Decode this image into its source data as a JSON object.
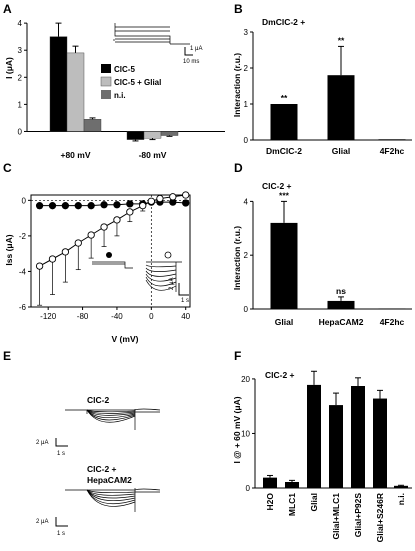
{
  "figure": {
    "panel_labels": [
      "A",
      "B",
      "C",
      "D",
      "E",
      "F"
    ]
  },
  "chart_data": [
    {
      "id": "A",
      "type": "bar",
      "ylabel": "I (μA)",
      "categories": [
        "+80 mV",
        "-80 mV"
      ],
      "series": [
        {
          "name": "ClC-5",
          "color": "#000000",
          "values": [
            3.5,
            -0.3
          ],
          "errors": [
            0.5,
            0.05
          ]
        },
        {
          "name": "ClC-5 + Glial",
          "color": "#bdbdbd",
          "values": [
            2.9,
            -0.25
          ],
          "errors": [
            0.25,
            0.05
          ]
        },
        {
          "name": "n.i.",
          "color": "#6e6e6e",
          "values": [
            0.45,
            -0.15
          ],
          "errors": [
            0.05,
            0.03
          ]
        }
      ],
      "ylim": [
        -0.5,
        4.3
      ],
      "yticks": [
        0,
        1,
        2,
        3,
        4
      ],
      "inset_scale": {
        "y": "1 μA",
        "x": "10 ms"
      }
    },
    {
      "id": "B",
      "type": "bar",
      "title": "DmClC-2 +",
      "ylabel": "Interaction (r.u.)",
      "categories": [
        "DmClC-2",
        "Glial",
        "4F2hc"
      ],
      "values": [
        1.0,
        1.8,
        0.02
      ],
      "errors": [
        0.0,
        0.8,
        0.0
      ],
      "significance": [
        "**",
        "**",
        ""
      ],
      "ylim": [
        0,
        3
      ],
      "yticks": [
        0,
        1,
        2,
        3
      ]
    },
    {
      "id": "C",
      "type": "line",
      "xlabel": "V (mV)",
      "ylabel": "Iss (μA)",
      "xlim": [
        -140,
        45
      ],
      "ylim": [
        -6,
        0.3
      ],
      "xticks": [
        -120,
        -80,
        -40,
        0,
        40
      ],
      "yticks": [
        0,
        -2,
        -4,
        -6
      ],
      "x": [
        -130,
        -115,
        -100,
        -85,
        -70,
        -55,
        -40,
        -25,
        -10,
        0,
        10,
        25,
        40
      ],
      "series": [
        {
          "name": "filled",
          "marker": "filled",
          "values": [
            -0.3,
            -0.3,
            -0.3,
            -0.3,
            -0.3,
            -0.25,
            -0.25,
            -0.2,
            -0.2,
            -0.1,
            -0.1,
            -0.1,
            -0.15
          ],
          "errors": [
            0.15,
            0.1,
            0.1,
            0.1,
            0.1,
            0.1,
            0.1,
            0.1,
            0.1,
            0.05,
            0.05,
            0.05,
            0.1
          ]
        },
        {
          "name": "open",
          "marker": "open",
          "values": [
            -3.7,
            -3.3,
            -2.9,
            -2.4,
            -1.95,
            -1.5,
            -1.1,
            -0.65,
            -0.3,
            -0.05,
            0.1,
            0.2,
            0.3
          ],
          "errors": [
            2.2,
            2.0,
            1.7,
            1.5,
            1.3,
            1.1,
            0.9,
            0.55,
            0.3,
            0.1,
            0.05,
            0.05,
            0.05
          ]
        }
      ],
      "inset_scale": {
        "y": "2 μA",
        "x": "1 s"
      }
    },
    {
      "id": "D",
      "type": "bar",
      "title": "ClC-2 +",
      "ylabel": "Interaction (r.u.)",
      "categories": [
        "Glial",
        "HepaCAM2",
        "4F2hc"
      ],
      "values": [
        3.2,
        0.3,
        0.02
      ],
      "errors": [
        0.8,
        0.15,
        0.0
      ],
      "significance": [
        "***",
        "ns",
        ""
      ],
      "ylim": [
        0,
        4.2
      ],
      "yticks": [
        0,
        2,
        4
      ]
    },
    {
      "id": "E",
      "type": "line",
      "traces": [
        {
          "label": "ClC-2",
          "scale": {
            "y": "2 μA",
            "x": "1 s"
          }
        },
        {
          "label": "ClC-2 + HepaCAM2",
          "label_lines": [
            "ClC-2 +",
            "HepaCAM2"
          ],
          "scale": {
            "y": "2 μA",
            "x": "1 s"
          }
        }
      ]
    },
    {
      "id": "F",
      "type": "bar",
      "title": "ClC-2 +",
      "ylabel": "I @ + 60 mV (μA)",
      "categories": [
        "H2O",
        "MLC1",
        "Glial",
        "Glial+MLC1",
        "Glial+P92S",
        "Glial+S246R",
        "n.i."
      ],
      "values": [
        1.9,
        1.1,
        18.9,
        15.2,
        18.7,
        16.4,
        0.4
      ],
      "errors": [
        0.4,
        0.3,
        2.5,
        2.2,
        1.5,
        1.5,
        0.1
      ],
      "ylim": [
        0,
        22
      ],
      "yticks": [
        0,
        10,
        20
      ]
    }
  ]
}
